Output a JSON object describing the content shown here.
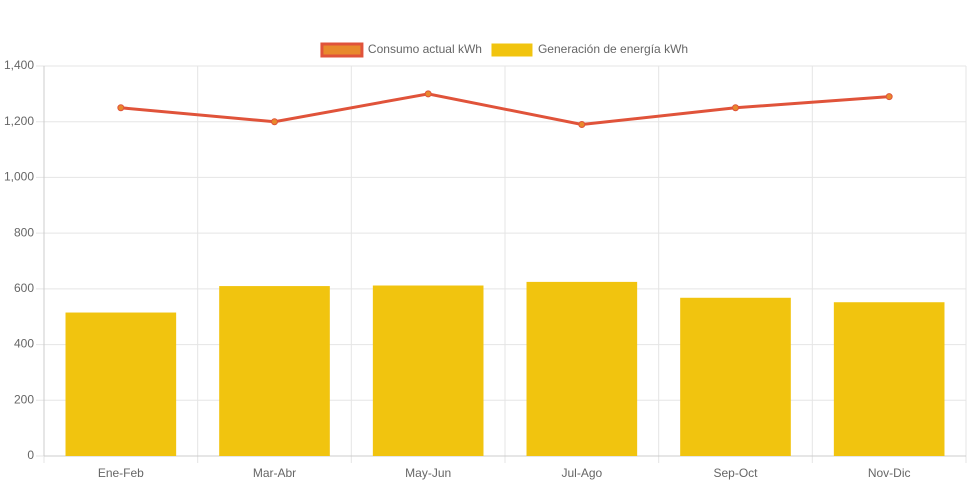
{
  "chart_data": {
    "type": "combo",
    "categories": [
      "Ene-Feb",
      "Mar-Abr",
      "May-Jun",
      "Jul-Ago",
      "Sep-Oct",
      "Nov-Dic"
    ],
    "series": [
      {
        "name": "Consumo actual kWh",
        "type": "line",
        "color": "#e0533a",
        "fill": "#e8892c",
        "values": [
          1250,
          1200,
          1300,
          1190,
          1250,
          1290
        ]
      },
      {
        "name": "Generación de energía kWh",
        "type": "bar",
        "color": "#f1c40f",
        "fill": "#f1c40f",
        "values": [
          515,
          610,
          612,
          625,
          568,
          552
        ]
      }
    ],
    "ylim": [
      0,
      1400
    ],
    "yticks": [
      0,
      200,
      400,
      600,
      800,
      {
        "value": 1000,
        "label": "1,000"
      },
      {
        "value": 1200,
        "label": "1,200"
      },
      {
        "value": 1400,
        "label": "1,400"
      }
    ],
    "grid": true,
    "legend": "top"
  }
}
